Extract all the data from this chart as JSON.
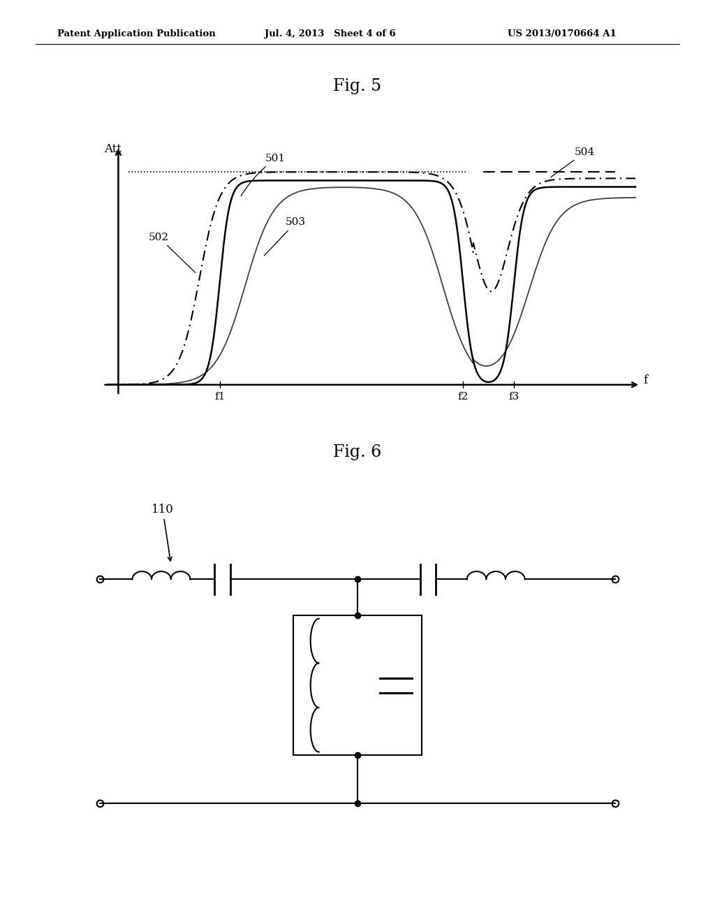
{
  "fig5_title": "Fig. 5",
  "fig6_title": "Fig. 6",
  "header_left": "Patent Application Publication",
  "header_mid": "Jul. 4, 2013   Sheet 4 of 6",
  "header_right": "US 2013/0170664 A1",
  "att_label": "Att",
  "f_label": "f",
  "f1_label": "f1",
  "f2_label": "f2",
  "f3_label": "f3",
  "label_501": "501",
  "label_502": "502",
  "label_503": "503",
  "label_504": "504",
  "label_110": "110",
  "background_color": "#ffffff"
}
